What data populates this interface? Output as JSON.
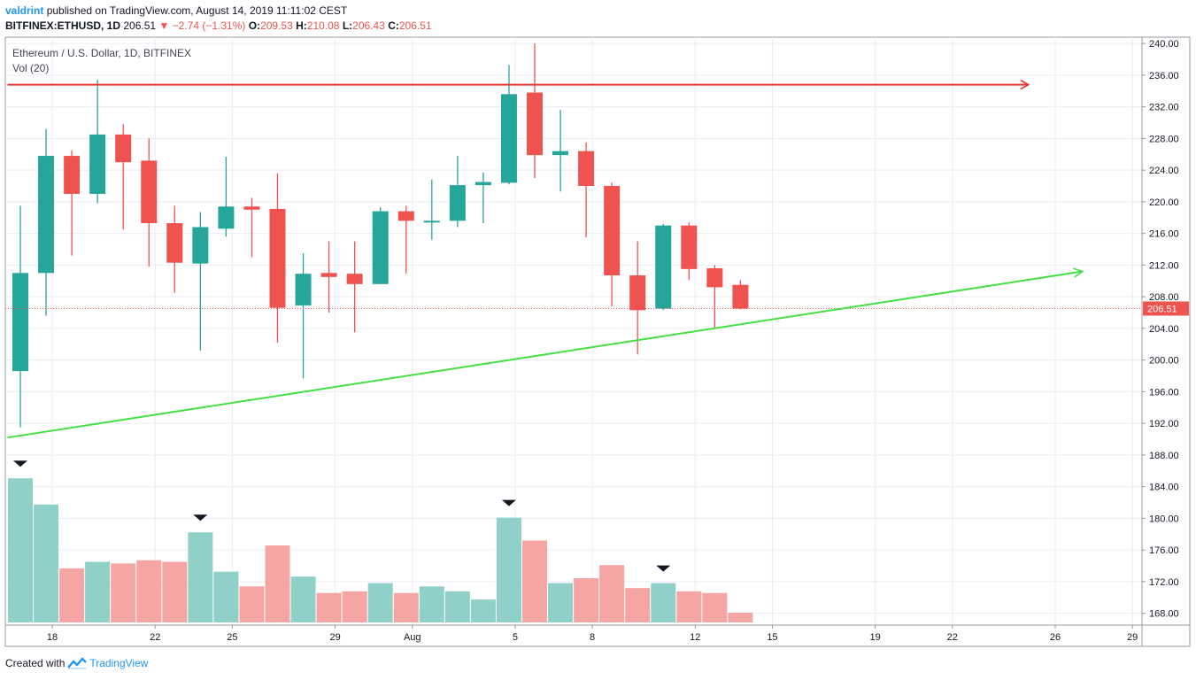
{
  "header": {
    "user": "valdrint",
    "published": "published on TradingView.com, August 14, 2019 11:11:02 CEST",
    "symbol": "BITFINEX:ETHUSD, 1D",
    "last": "206.51",
    "change_arrow": "▼",
    "change": "−2.74 (−1.31%)",
    "o_label": "O:",
    "o_val": "209.53",
    "h_label": "H:",
    "h_val": "210.08",
    "l_label": "L:",
    "l_val": "206.43",
    "c_label": "C:",
    "c_val": "206.51"
  },
  "legend": {
    "title": "Ethereum / U.S. Dollar, 1D, BITFINEX",
    "volume": "Vol (20)"
  },
  "footer": {
    "created": "Created with",
    "brand": "TradingView"
  },
  "colors": {
    "up": "#26a69a",
    "down": "#ef5350",
    "vol_up": "#8fd1c9",
    "vol_down": "#f5a5a3",
    "resistance": "#e53935",
    "support": "#43e043",
    "grid": "#e9eef5"
  },
  "chart_data": {
    "type": "candlestick",
    "y_ticks": [
      "240.00",
      "236.00",
      "232.00",
      "228.00",
      "224.00",
      "220.00",
      "216.00",
      "212.00",
      "208.00",
      "204.00",
      "200.00",
      "196.00",
      "192.00",
      "188.00",
      "184.00",
      "180.00",
      "176.00",
      "172.00",
      "168.00"
    ],
    "ylim": [
      166.5,
      240.8
    ],
    "x_ticks": [
      {
        "label": "18",
        "day": 1
      },
      {
        "label": "22",
        "day": 5
      },
      {
        "label": "25",
        "day": 8
      },
      {
        "label": "29",
        "day": 12
      },
      {
        "label": "Aug",
        "day": 15
      },
      {
        "label": "5",
        "day": 19
      },
      {
        "label": "8",
        "day": 22
      },
      {
        "label": "12",
        "day": 26
      },
      {
        "label": "15",
        "day": 29
      },
      {
        "label": "19",
        "day": 33
      },
      {
        "label": "22",
        "day": 36
      },
      {
        "label": "26",
        "day": 40
      },
      {
        "label": "29",
        "day": 43
      }
    ],
    "last_price": "206.51",
    "candles": [
      {
        "o": 198.6,
        "h": 219.5,
        "l": 191.5,
        "c": 211.0
      },
      {
        "o": 211.0,
        "h": 229.2,
        "l": 205.6,
        "c": 225.8
      },
      {
        "o": 225.8,
        "h": 226.5,
        "l": 213.2,
        "c": 221.0
      },
      {
        "o": 221.0,
        "h": 235.4,
        "l": 219.8,
        "c": 228.5
      },
      {
        "o": 228.5,
        "h": 229.8,
        "l": 216.5,
        "c": 225.0
      },
      {
        "o": 225.2,
        "h": 228.0,
        "l": 211.8,
        "c": 217.3
      },
      {
        "o": 217.3,
        "h": 219.5,
        "l": 208.5,
        "c": 212.3
      },
      {
        "o": 212.2,
        "h": 218.7,
        "l": 201.2,
        "c": 216.8
      },
      {
        "o": 216.6,
        "h": 225.7,
        "l": 215.6,
        "c": 219.4
      },
      {
        "o": 219.4,
        "h": 220.5,
        "l": 213.0,
        "c": 219.0
      },
      {
        "o": 219.1,
        "h": 223.6,
        "l": 202.2,
        "c": 206.6
      },
      {
        "o": 206.9,
        "h": 213.5,
        "l": 197.7,
        "c": 210.9
      },
      {
        "o": 211.0,
        "h": 215.0,
        "l": 206.0,
        "c": 210.5
      },
      {
        "o": 210.9,
        "h": 215.0,
        "l": 203.5,
        "c": 209.6
      },
      {
        "o": 209.6,
        "h": 219.3,
        "l": 209.6,
        "c": 218.8
      },
      {
        "o": 218.8,
        "h": 219.5,
        "l": 210.9,
        "c": 217.6
      },
      {
        "o": 217.4,
        "h": 222.8,
        "l": 215.2,
        "c": 217.6
      },
      {
        "o": 217.6,
        "h": 225.8,
        "l": 216.8,
        "c": 222.1
      },
      {
        "o": 222.1,
        "h": 223.7,
        "l": 217.3,
        "c": 222.5
      },
      {
        "o": 222.4,
        "h": 237.3,
        "l": 222.2,
        "c": 233.6
      },
      {
        "o": 233.8,
        "h": 240.0,
        "l": 223.0,
        "c": 225.9
      },
      {
        "o": 225.9,
        "h": 231.6,
        "l": 221.3,
        "c": 226.4
      },
      {
        "o": 226.4,
        "h": 227.5,
        "l": 215.5,
        "c": 222.0
      },
      {
        "o": 222.0,
        "h": 222.4,
        "l": 206.8,
        "c": 210.7
      },
      {
        "o": 210.7,
        "h": 215.0,
        "l": 200.7,
        "c": 206.3
      },
      {
        "o": 206.5,
        "h": 217.2,
        "l": 206.3,
        "c": 217.0
      },
      {
        "o": 217.0,
        "h": 217.4,
        "l": 210.1,
        "c": 211.5
      },
      {
        "o": 211.6,
        "h": 212.0,
        "l": 204.0,
        "c": 209.2
      },
      {
        "o": 209.5,
        "h": 210.1,
        "l": 206.4,
        "c": 206.5
      }
    ],
    "volume_relative": [
      0.88,
      0.72,
      0.33,
      0.37,
      0.36,
      0.38,
      0.37,
      0.55,
      0.31,
      0.22,
      0.47,
      0.28,
      0.18,
      0.19,
      0.24,
      0.18,
      0.22,
      0.19,
      0.14,
      0.64,
      0.5,
      0.24,
      0.27,
      0.35,
      0.21,
      0.24,
      0.19,
      0.18,
      0.06
    ],
    "volume_markers_day": [
      0,
      7,
      19,
      25
    ],
    "resistance_line": {
      "from_day": -0.5,
      "to_day": 39.2,
      "price": 234.8
    },
    "support_line": {
      "from_day": -0.5,
      "price_from": 190.2,
      "to_day": 41.3,
      "price_to": 211.2
    }
  }
}
